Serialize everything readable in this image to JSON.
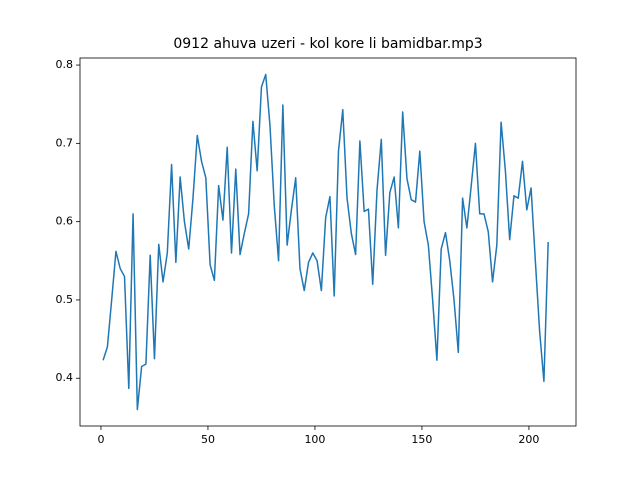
{
  "chart_data": {
    "type": "line",
    "title": "0912 ahuva uzeri - kol kore li bamidbar.mp3",
    "x": [
      1,
      3,
      5,
      7,
      9,
      11,
      13,
      15,
      17,
      19,
      21,
      23,
      25,
      27,
      29,
      31,
      33,
      35,
      37,
      39,
      41,
      43,
      45,
      47,
      49,
      51,
      53,
      55,
      57,
      59,
      61,
      63,
      65,
      67,
      69,
      71,
      73,
      75,
      77,
      79,
      81,
      83,
      85,
      87,
      89,
      91,
      93,
      95,
      97,
      99,
      101,
      103,
      105,
      107,
      109,
      111,
      113,
      115,
      117,
      119,
      121,
      123,
      125,
      127,
      129,
      131,
      133,
      135,
      137,
      139,
      141,
      143,
      145,
      147,
      149,
      151,
      153,
      155,
      157,
      159,
      161,
      163,
      165,
      167,
      169,
      171,
      173,
      175,
      177,
      179,
      181,
      183,
      185,
      187,
      189,
      191,
      193,
      195,
      197,
      199,
      201,
      203,
      205,
      207,
      209
    ],
    "series": [
      {
        "color": "#1f77b4",
        "values": [
          0.423,
          0.44,
          0.5,
          0.562,
          0.54,
          0.53,
          0.387,
          0.61,
          0.36,
          0.415,
          0.418,
          0.557,
          0.425,
          0.571,
          0.523,
          0.56,
          0.673,
          0.548,
          0.657,
          0.6,
          0.565,
          0.63,
          0.71,
          0.677,
          0.656,
          0.545,
          0.525,
          0.646,
          0.602,
          0.695,
          0.56,
          0.667,
          0.558,
          0.585,
          0.61,
          0.728,
          0.665,
          0.772,
          0.788,
          0.722,
          0.62,
          0.55,
          0.749,
          0.57,
          0.615,
          0.656,
          0.54,
          0.512,
          0.548,
          0.56,
          0.55,
          0.512,
          0.605,
          0.632,
          0.505,
          0.69,
          0.743,
          0.63,
          0.585,
          0.558,
          0.703,
          0.613,
          0.616,
          0.52,
          0.64,
          0.705,
          0.557,
          0.637,
          0.657,
          0.592,
          0.74,
          0.655,
          0.628,
          0.625,
          0.69,
          0.6,
          0.57,
          0.5,
          0.423,
          0.565,
          0.586,
          0.55,
          0.5,
          0.433,
          0.63,
          0.592,
          0.645,
          0.7,
          0.61,
          0.61,
          0.587,
          0.523,
          0.57,
          0.727,
          0.665,
          0.577,
          0.633,
          0.63,
          0.677,
          0.615,
          0.643,
          0.55,
          0.46,
          0.396,
          0.574
        ]
      }
    ],
    "xlim": [
      -9.8,
      222
    ],
    "ylim": [
      0.339,
      0.809
    ],
    "xticks": [
      0,
      50,
      100,
      150,
      200
    ],
    "yticks": [
      0.4,
      0.5,
      0.6,
      0.7,
      0.8
    ]
  }
}
